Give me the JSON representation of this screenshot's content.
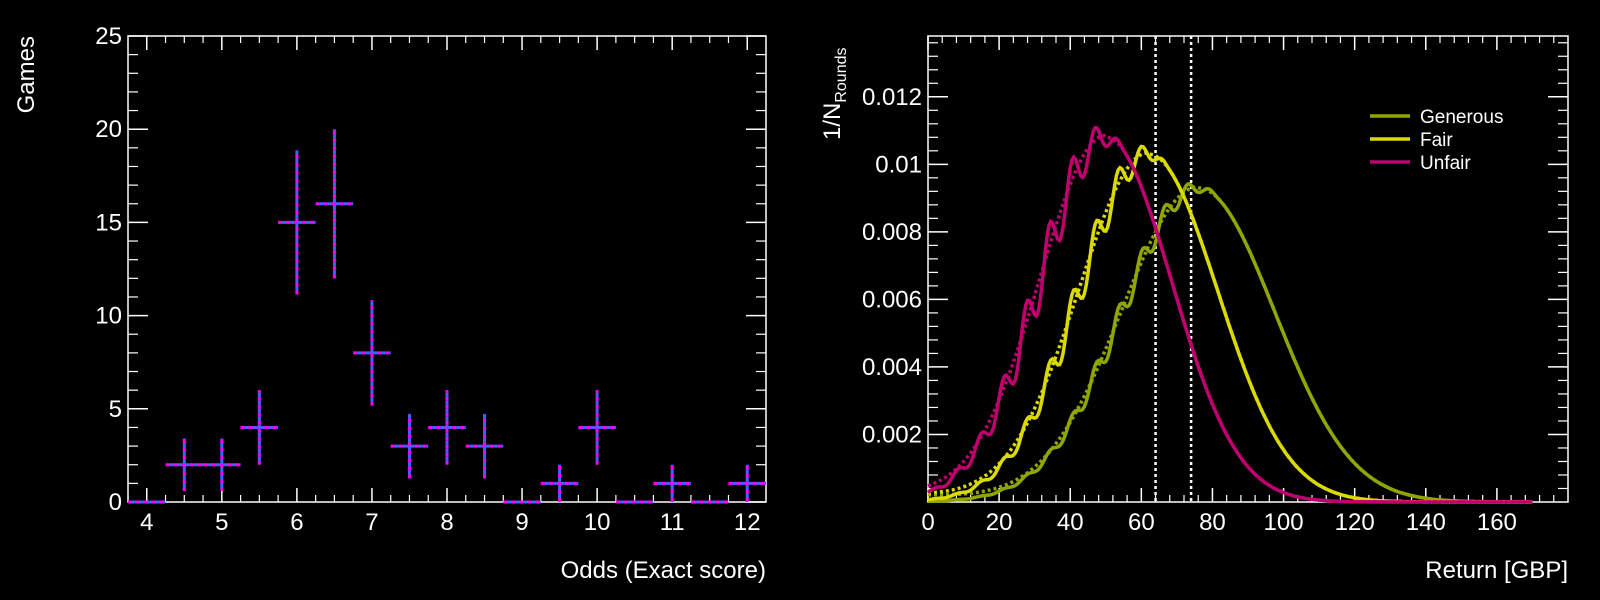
{
  "chart_data": [
    {
      "type": "bar",
      "subtype": "histogram-with-error-bars",
      "title": "",
      "xlabel": "Odds (Exact score)",
      "ylabel": "Games",
      "xlim": [
        3.75,
        12.25
      ],
      "ylim": [
        0,
        25
      ],
      "x_ticks": [
        "4",
        "5",
        "6",
        "7",
        "8",
        "9",
        "10",
        "11",
        "12"
      ],
      "y_ticks": [
        "0",
        "5",
        "10",
        "15",
        "20",
        "25"
      ],
      "bin_width": 0.5,
      "x": [
        4.0,
        4.5,
        5.0,
        5.5,
        6.0,
        6.5,
        7.0,
        7.5,
        8.0,
        8.5,
        9.0,
        9.5,
        10.0,
        10.5,
        11.0,
        11.5,
        12.0
      ],
      "values": [
        0,
        2,
        2,
        4,
        15,
        16,
        8,
        3,
        4,
        3,
        0,
        1,
        4,
        0,
        1,
        0,
        1
      ],
      "errors": [
        0,
        1.41,
        1.41,
        2,
        3.87,
        4,
        2.83,
        1.73,
        2,
        1.73,
        0,
        1,
        2,
        0,
        1,
        0,
        1
      ],
      "colors": {
        "primary": "#ff00ff",
        "secondary": "#3c64ff"
      },
      "grid": false
    },
    {
      "type": "line",
      "title": "",
      "xlabel": "Return [GBP]",
      "ylabel_main": "1/N",
      "ylabel_sub": "Rounds",
      "xlim": [
        0,
        180
      ],
      "ylim": [
        0,
        0.0138
      ],
      "x_ticks": [
        "0",
        "20",
        "40",
        "60",
        "80",
        "100",
        "120",
        "140",
        "160"
      ],
      "y_ticks": [
        "0.002",
        "0.004",
        "0.006",
        "0.008",
        "0.01",
        "0.012"
      ],
      "legend_position": "top-right",
      "grid": false,
      "series": [
        {
          "name": "Generous",
          "color": "#8fa600",
          "mean": 76,
          "sigma": 21.5,
          "amplitude": 0.0093
        },
        {
          "name": "Fair",
          "color": "#dada00",
          "mean": 62,
          "sigma": 19.5,
          "amplitude": 0.0103
        },
        {
          "name": "Unfair",
          "color": "#c0006e",
          "mean": 50,
          "sigma": 18.5,
          "amplitude": 0.0108
        }
      ],
      "reference_lines_x": [
        64,
        74
      ]
    }
  ]
}
